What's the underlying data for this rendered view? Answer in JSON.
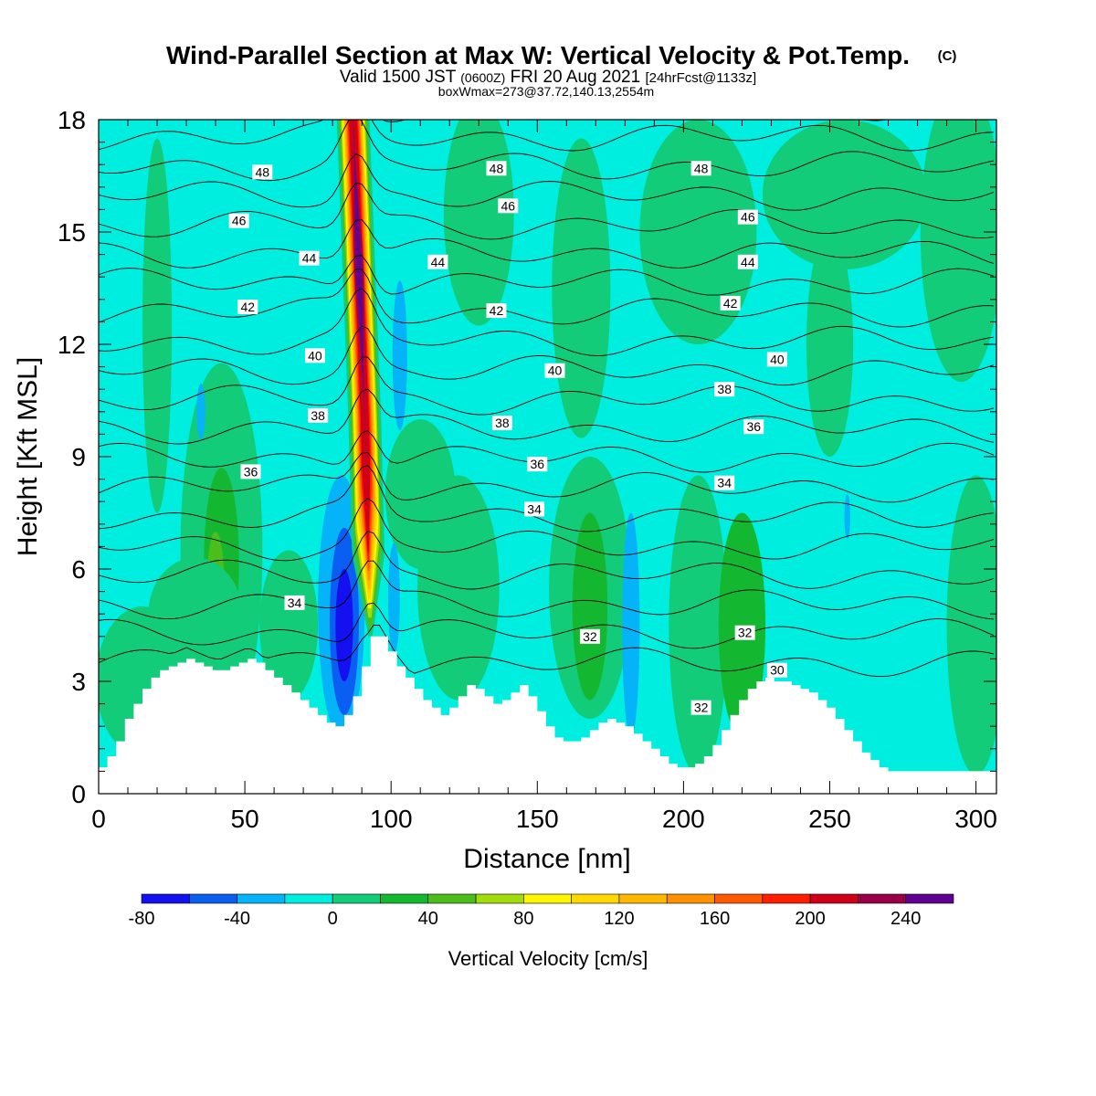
{
  "chart_data": {
    "type": "heatmap",
    "title": "Wind-Parallel Section at Max W: Vertical Velocity & Pot.Temp.",
    "title_mark": "(C)",
    "subtitle": {
      "valid_prefix": "Valid 1500 JST",
      "utc": "(0600Z)",
      "date": "FRI 20 Aug 2021",
      "forecast": "[24hrFcst@1133z]"
    },
    "box_info": "boxWmax=273@37.72,140.13,2554m",
    "xlabel": "Distance [nm]",
    "ylabel": "Height [Kft MSL]",
    "xlim": [
      0,
      307
    ],
    "ylim": [
      0,
      18
    ],
    "x_ticks": [
      0,
      50,
      100,
      150,
      200,
      250,
      300
    ],
    "y_ticks": [
      0,
      3,
      6,
      9,
      12,
      15,
      18
    ],
    "colorbar": {
      "label": "Vertical Velocity [cm/s]",
      "ticks": [
        -80,
        -40,
        0,
        40,
        80,
        120,
        160,
        200,
        240
      ],
      "bins": [
        -80,
        -60,
        -40,
        -20,
        0,
        20,
        40,
        60,
        80,
        100,
        120,
        140,
        160,
        180,
        200,
        220,
        240,
        260
      ],
      "colors": [
        "#1410f0",
        "#0a5ef2",
        "#05b4f8",
        "#00eee0",
        "#12cc7a",
        "#14b830",
        "#4cbe1c",
        "#a2dc0c",
        "#fff600",
        "#ffd800",
        "#ffb800",
        "#ff9000",
        "#ff5a00",
        "#ff1e00",
        "#d00018",
        "#9a0048",
        "#600090"
      ]
    },
    "background_color": "#00eee0",
    "terrain": {
      "x": [
        0,
        3,
        6,
        9,
        12,
        15,
        18,
        21,
        24,
        27,
        30,
        33,
        36,
        39,
        42,
        45,
        48,
        51,
        54,
        57,
        60,
        63,
        66,
        69,
        72,
        75,
        78,
        81,
        84,
        87,
        90,
        93,
        96,
        99,
        102,
        105,
        108,
        111,
        114,
        117,
        120,
        123,
        126,
        129,
        132,
        135,
        138,
        141,
        144,
        147,
        150,
        153,
        156,
        159,
        162,
        165,
        168,
        171,
        174,
        177,
        180,
        183,
        186,
        189,
        192,
        195,
        198,
        201,
        204,
        207,
        210,
        213,
        216,
        219,
        222,
        225,
        228,
        231,
        234,
        237,
        240,
        243,
        246,
        249,
        252,
        255,
        258,
        261,
        264,
        267,
        270,
        273,
        276,
        279,
        282,
        285,
        288,
        291,
        294,
        297,
        300,
        303,
        306
      ],
      "y": [
        0.7,
        1.0,
        1.4,
        2.0,
        2.4,
        2.8,
        3.1,
        3.3,
        3.4,
        3.5,
        3.6,
        3.5,
        3.4,
        3.3,
        3.3,
        3.4,
        3.5,
        3.6,
        3.5,
        3.3,
        3.1,
        2.9,
        2.7,
        2.5,
        2.3,
        2.1,
        1.9,
        1.8,
        2.1,
        2.6,
        3.4,
        4.2,
        4.2,
        3.8,
        3.4,
        3.1,
        2.8,
        2.5,
        2.3,
        2.1,
        2.3,
        2.6,
        2.9,
        2.8,
        2.6,
        2.4,
        2.5,
        2.7,
        2.9,
        2.6,
        2.2,
        1.8,
        1.5,
        1.4,
        1.4,
        1.5,
        1.7,
        1.9,
        2.0,
        1.9,
        1.8,
        1.6,
        1.4,
        1.2,
        1.0,
        0.8,
        0.7,
        0.7,
        0.8,
        1.0,
        1.3,
        1.7,
        2.1,
        2.5,
        2.8,
        3.0,
        3.1,
        3.0,
        3.0,
        2.9,
        2.8,
        2.7,
        2.5,
        2.3,
        2.0,
        1.7,
        1.4,
        1.1,
        0.9,
        0.7,
        0.6,
        0.6,
        0.6,
        0.6,
        0.6,
        0.6,
        0.6,
        0.6,
        0.6,
        0.6,
        0.6,
        0.6,
        0.6
      ]
    },
    "updraft_core": {
      "x_center": [
        93,
        92,
        91,
        90,
        89,
        88,
        87
      ],
      "y": [
        4.0,
        7,
        10,
        12,
        14,
        16,
        18
      ],
      "max_value": 273
    },
    "contour_levels": [
      30,
      31,
      32,
      33,
      34,
      35,
      36,
      37,
      38,
      39,
      40,
      41,
      42,
      43,
      44,
      45,
      46,
      47,
      48,
      49
    ],
    "contour_labels": [
      {
        "text": "48",
        "x": 56,
        "y": 16.6
      },
      {
        "text": "48",
        "x": 136,
        "y": 16.7
      },
      {
        "text": "48",
        "x": 206,
        "y": 16.7
      },
      {
        "text": "46",
        "x": 48,
        "y": 15.3
      },
      {
        "text": "46",
        "x": 140,
        "y": 15.7
      },
      {
        "text": "46",
        "x": 222,
        "y": 15.4
      },
      {
        "text": "44",
        "x": 72,
        "y": 14.3
      },
      {
        "text": "44",
        "x": 116,
        "y": 14.2
      },
      {
        "text": "44",
        "x": 222,
        "y": 14.2
      },
      {
        "text": "42",
        "x": 51,
        "y": 13.0
      },
      {
        "text": "42",
        "x": 136,
        "y": 12.9
      },
      {
        "text": "42",
        "x": 216,
        "y": 13.1
      },
      {
        "text": "40",
        "x": 74,
        "y": 11.7
      },
      {
        "text": "40",
        "x": 156,
        "y": 11.3
      },
      {
        "text": "40",
        "x": 232,
        "y": 11.6
      },
      {
        "text": "38",
        "x": 75,
        "y": 10.1
      },
      {
        "text": "38",
        "x": 138,
        "y": 9.9
      },
      {
        "text": "38",
        "x": 214,
        "y": 10.8
      },
      {
        "text": "36",
        "x": 52,
        "y": 8.6
      },
      {
        "text": "36",
        "x": 150,
        "y": 8.8
      },
      {
        "text": "36",
        "x": 224,
        "y": 9.8
      },
      {
        "text": "34",
        "x": 67,
        "y": 5.1
      },
      {
        "text": "34",
        "x": 149,
        "y": 7.6
      },
      {
        "text": "34",
        "x": 214,
        "y": 8.3
      },
      {
        "text": "32",
        "x": 168,
        "y": 4.2
      },
      {
        "text": "32",
        "x": 206,
        "y": 2.3
      },
      {
        "text": "32",
        "x": 221,
        "y": 4.3
      },
      {
        "text": "30",
        "x": 232,
        "y": 3.3
      }
    ]
  }
}
